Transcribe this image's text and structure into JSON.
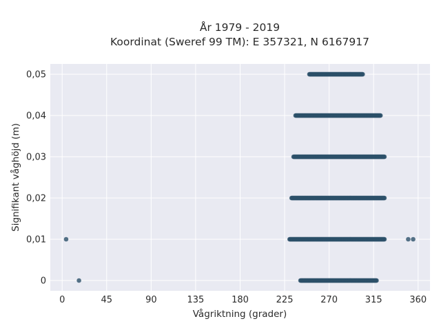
{
  "chart_data": {
    "type": "scatter",
    "title": "År 1979 - 2019",
    "subtitle": "Koordinat (Sweref 99 TM): E 357321, N 6167917",
    "xlabel": "Vågriktning (grader)",
    "ylabel": "Signifikant våghöjd (m)",
    "xlim": [
      -12,
      372
    ],
    "ylim": [
      -0.0025,
      0.0525
    ],
    "xticks": [
      0,
      45,
      90,
      135,
      180,
      225,
      270,
      315,
      360
    ],
    "xtick_labels": [
      "0",
      "45",
      "90",
      "135",
      "180",
      "225",
      "270",
      "315",
      "360"
    ],
    "yticks": [
      0,
      0.01,
      0.02,
      0.03,
      0.04,
      0.05
    ],
    "ytick_labels": [
      "0",
      "0,01",
      "0,02",
      "0,03",
      "0,04",
      "0,05"
    ],
    "grid": true,
    "legend": "none",
    "colors": {
      "marker": "#2c5069",
      "plot_bg": "#e9eaf2",
      "grid": "#ffffff"
    },
    "bands": [
      {
        "y": 0.05,
        "x_min": 250,
        "x_max": 304
      },
      {
        "y": 0.04,
        "x_min": 236,
        "x_max": 322
      },
      {
        "y": 0.03,
        "x_min": 234,
        "x_max": 326
      },
      {
        "y": 0.02,
        "x_min": 232,
        "x_max": 326
      },
      {
        "y": 0.01,
        "x_min": 230,
        "x_max": 326
      },
      {
        "y": 0,
        "x_min": 241,
        "x_max": 318
      }
    ],
    "outliers": [
      {
        "x": 4,
        "y": 0.01
      },
      {
        "x": 17,
        "y": 0
      },
      {
        "x": 350,
        "y": 0.01
      },
      {
        "x": 355,
        "y": 0.01
      }
    ]
  }
}
